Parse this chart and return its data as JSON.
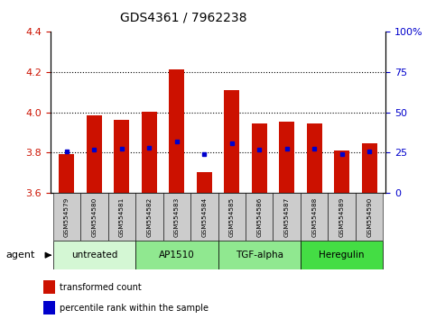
{
  "title": "GDS4361 / 7962238",
  "samples": [
    "GSM554579",
    "GSM554580",
    "GSM554581",
    "GSM554582",
    "GSM554583",
    "GSM554584",
    "GSM554585",
    "GSM554586",
    "GSM554587",
    "GSM554588",
    "GSM554589",
    "GSM554590"
  ],
  "red_values": [
    3.795,
    3.985,
    3.965,
    4.005,
    4.215,
    3.705,
    4.11,
    3.945,
    3.955,
    3.945,
    3.81,
    3.845
  ],
  "blue_values": [
    3.805,
    3.815,
    3.82,
    3.825,
    3.855,
    3.795,
    3.845,
    3.815,
    3.82,
    3.82,
    3.795,
    3.805
  ],
  "ylim_left": [
    3.6,
    4.4
  ],
  "ylim_right": [
    0,
    100
  ],
  "yticks_left": [
    3.6,
    3.8,
    4.0,
    4.2,
    4.4
  ],
  "yticks_right": [
    0,
    25,
    50,
    75,
    100
  ],
  "ytick_labels_right": [
    "0",
    "25",
    "50",
    "75",
    "100%"
  ],
  "groups": [
    {
      "label": "untreated",
      "start": 0,
      "end": 3,
      "color": "#d4f7d4"
    },
    {
      "label": "AP1510",
      "start": 3,
      "end": 6,
      "color": "#90e890"
    },
    {
      "label": "TGF-alpha",
      "start": 6,
      "end": 9,
      "color": "#90e890"
    },
    {
      "label": "Heregulin",
      "start": 9,
      "end": 12,
      "color": "#44dd44"
    }
  ],
  "bar_color": "#cc1100",
  "blue_color": "#0000cc",
  "bar_bottom": 3.6,
  "bar_width": 0.55,
  "dotted_lines": [
    3.8,
    4.0,
    4.2
  ],
  "legend_items": [
    {
      "color": "#cc1100",
      "label": "transformed count"
    },
    {
      "color": "#0000cc",
      "label": "percentile rank within the sample"
    }
  ],
  "agent_label": "agent",
  "left_tick_color": "#cc1100",
  "right_tick_color": "#0000cc",
  "bg_color": "#ffffff",
  "plot_bg": "#ffffff",
  "sample_box_color": "#cccccc",
  "title_fontsize": 10,
  "tick_fontsize": 8,
  "label_fontsize": 7
}
